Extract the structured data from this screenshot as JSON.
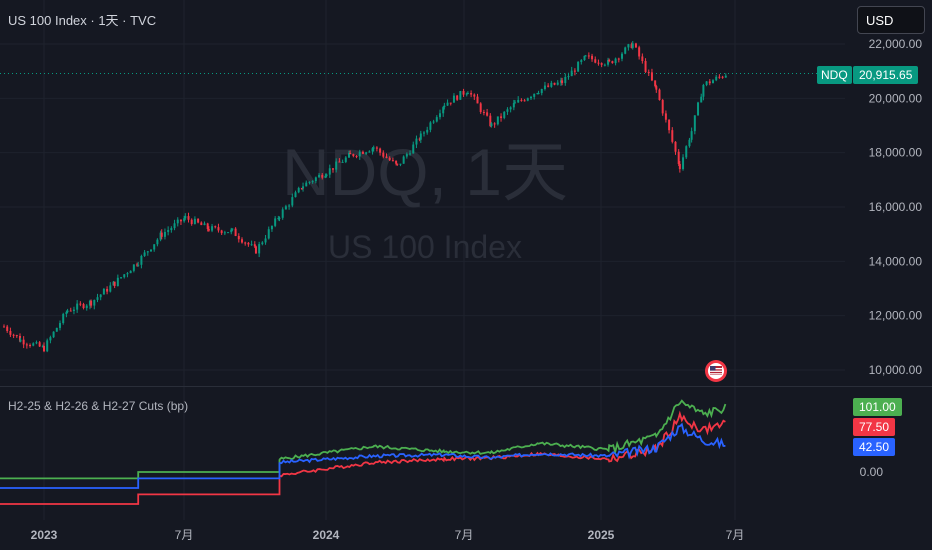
{
  "header": {
    "title": "US 100 Index · 1天 · TVC",
    "currency_button": "USD"
  },
  "watermark": {
    "symbol": "NDQ, 1天",
    "name": "US 100 Index"
  },
  "price_axis": {
    "ticks": [
      "22,000.00",
      "20,000.00",
      "18,000.00",
      "16,000.00",
      "14,000.00",
      "12,000.00",
      "10,000.00"
    ],
    "tick_values": [
      22000,
      20000,
      18000,
      16000,
      14000,
      12000,
      10000
    ],
    "current_label": "NDQ",
    "current_price": "20,915.65",
    "current_value": 20915.65,
    "accent": "#089981"
  },
  "indicator": {
    "label": "H2-25 & H2-26 & H2-27 Cuts (bp)",
    "axis_ticks": [
      "0.00"
    ],
    "badges": [
      {
        "name": "H2-27",
        "text": "101.00",
        "value": 101.0,
        "color": "#4caf50"
      },
      {
        "name": "H2-26",
        "text": "77.50",
        "value": 77.5,
        "color": "#f23645"
      },
      {
        "name": "H2-25",
        "text": "42.50",
        "value": 42.5,
        "color": "#2962ff"
      }
    ]
  },
  "time_axis": {
    "labels": [
      "2023",
      "7月",
      "2024",
      "7月",
      "2025",
      "7月"
    ],
    "bold": [
      true,
      false,
      true,
      false,
      true,
      false
    ]
  },
  "event_icon": "us-flag-icon",
  "colors": {
    "up": "#089981",
    "down": "#f23645",
    "background": "#151822"
  },
  "chart_data": [
    {
      "type": "line",
      "title": "US 100 Index",
      "series": [
        {
          "name": "NDQ",
          "x": [
            "2022-11",
            "2022-12",
            "2023-01",
            "2023-02",
            "2023-03",
            "2023-04",
            "2023-05",
            "2023-06",
            "2023-07",
            "2023-08",
            "2023-09",
            "2023-10",
            "2023-11",
            "2023-12",
            "2024-01",
            "2024-02",
            "2024-03",
            "2024-04",
            "2024-05",
            "2024-06",
            "2024-07",
            "2024-08",
            "2024-09",
            "2024-10",
            "2024-11",
            "2024-12",
            "2025-01",
            "2025-02",
            "2025-03",
            "2025-04",
            "2025-04b",
            "2025-05",
            "2025-06"
          ],
          "values": [
            11600,
            11100,
            10800,
            12200,
            12500,
            13200,
            14000,
            15000,
            15600,
            15200,
            15100,
            14400,
            15700,
            16800,
            17300,
            17900,
            18200,
            17500,
            18600,
            19800,
            20300,
            19000,
            19800,
            20300,
            20600,
            21500,
            21300,
            22000,
            20300,
            17500,
            18800,
            20500,
            20915.65
          ]
        }
      ],
      "ylim": [
        9700,
        22300
      ]
    },
    {
      "type": "line",
      "title": "H2-25 & H2-26 & H2-27 Cuts (bp)",
      "series": [
        {
          "name": "H2-25",
          "x": [
            "2022-10",
            "2023-04",
            "2023-05",
            "2023-10",
            "2023-11",
            "2024-03",
            "2024-06",
            "2024-08",
            "2024-10",
            "2025-01",
            "2025-03",
            "2025-04",
            "2025-05",
            "2025-06"
          ],
          "values": [
            -25,
            -25,
            -10,
            -10,
            15,
            25,
            27,
            22,
            29,
            25,
            38,
            70,
            50,
            42.5
          ]
        },
        {
          "name": "H2-26",
          "x": [
            "2022-10",
            "2023-04",
            "2023-05",
            "2023-10",
            "2023-11",
            "2024-03",
            "2024-06",
            "2024-08",
            "2024-10",
            "2025-01",
            "2025-03",
            "2025-04",
            "2025-05",
            "2025-06"
          ],
          "values": [
            -50,
            -50,
            -35,
            -35,
            -5,
            15,
            20,
            22,
            28,
            20,
            35,
            85,
            65,
            77.5
          ]
        },
        {
          "name": "H2-27",
          "x": [
            "2022-10",
            "2023-04",
            "2023-05",
            "2023-10",
            "2023-11",
            "2024-03",
            "2024-06",
            "2024-08",
            "2024-10",
            "2025-01",
            "2025-03",
            "2025-04",
            "2025-05",
            "2025-06"
          ],
          "values": [
            -10,
            -10,
            0,
            0,
            20,
            40,
            32,
            30,
            45,
            35,
            55,
            110,
            90,
            101
          ]
        }
      ],
      "ylim": [
        -70,
        130
      ]
    }
  ]
}
